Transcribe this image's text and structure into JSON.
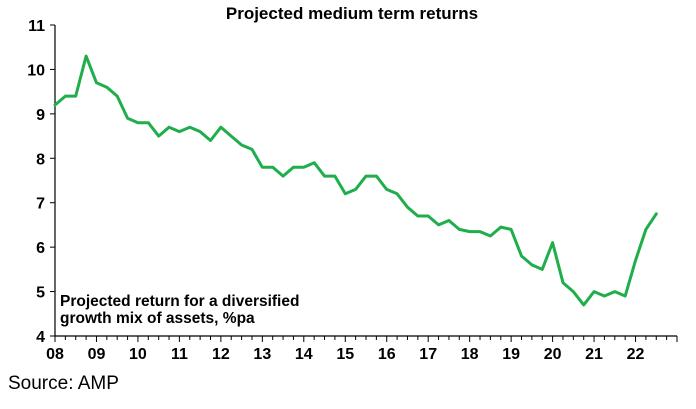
{
  "chart_data": {
    "type": "line",
    "title": "Projected medium term returns",
    "annotation_lines": [
      "Projected return for a diversified",
      "growth mix of assets, %pa"
    ],
    "xlabel": "",
    "ylabel": "",
    "x_tick_labels": [
      "08",
      "09",
      "10",
      "11",
      "12",
      "13",
      "14",
      "15",
      "16",
      "17",
      "18",
      "19",
      "20",
      "21",
      "22"
    ],
    "y_tick_labels": [
      "4",
      "5",
      "6",
      "7",
      "8",
      "9",
      "10",
      "11"
    ],
    "xlim": [
      2008,
      2023
    ],
    "ylim": [
      4,
      11
    ],
    "grid": false,
    "series": [
      {
        "color": "#1fae4b",
        "x": [
          2008.0,
          2008.25,
          2008.5,
          2008.75,
          2009.0,
          2009.25,
          2009.5,
          2009.75,
          2010.0,
          2010.25,
          2010.5,
          2010.75,
          2011.0,
          2011.25,
          2011.5,
          2011.75,
          2012.0,
          2012.25,
          2012.5,
          2012.75,
          2013.0,
          2013.25,
          2013.5,
          2013.75,
          2014.0,
          2014.25,
          2014.5,
          2014.75,
          2015.0,
          2015.25,
          2015.5,
          2015.75,
          2016.0,
          2016.25,
          2016.5,
          2016.75,
          2017.0,
          2017.25,
          2017.5,
          2017.75,
          2018.0,
          2018.25,
          2018.5,
          2018.75,
          2019.0,
          2019.25,
          2019.5,
          2019.75,
          2020.0,
          2020.25,
          2020.5,
          2020.75,
          2021.0,
          2021.25,
          2021.5,
          2021.75,
          2022.0,
          2022.25,
          2022.5
        ],
        "values": [
          9.2,
          9.4,
          9.4,
          10.3,
          9.7,
          9.6,
          9.4,
          8.9,
          8.8,
          8.8,
          8.5,
          8.7,
          8.6,
          8.7,
          8.6,
          8.4,
          8.7,
          8.5,
          8.3,
          8.2,
          7.8,
          7.8,
          7.6,
          7.8,
          7.8,
          7.9,
          7.6,
          7.6,
          7.2,
          7.3,
          7.6,
          7.6,
          7.3,
          7.2,
          6.9,
          6.7,
          6.7,
          6.5,
          6.6,
          6.4,
          6.35,
          6.35,
          6.25,
          6.45,
          6.4,
          5.8,
          5.6,
          5.5,
          6.1,
          5.2,
          5.0,
          4.7,
          5.0,
          4.9,
          5.0,
          4.9,
          5.7,
          6.4,
          6.75
        ]
      }
    ]
  },
  "footer": {
    "source": "Source: AMP"
  }
}
